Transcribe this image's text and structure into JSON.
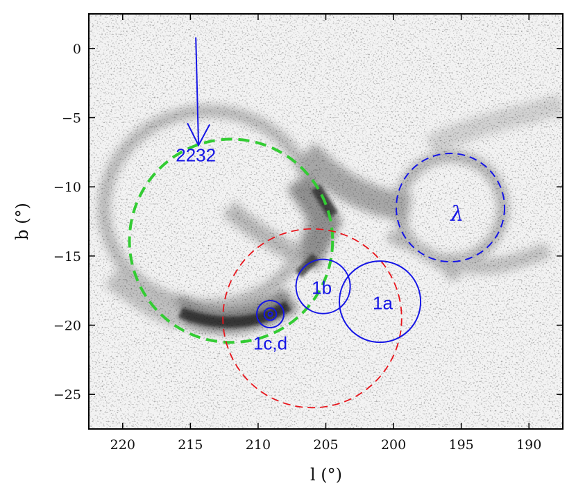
{
  "chart_data": {
    "type": "image",
    "xlabel": "l (°)",
    "ylabel": "b (°)",
    "xlim": [
      222.5,
      187.5
    ],
    "ylim": [
      -27.5,
      2.5
    ],
    "x_reversed": true,
    "xticks": [
      220,
      215,
      210,
      205,
      200,
      195,
      190
    ],
    "yticks": [
      0,
      -5,
      -10,
      -15,
      -20,
      -25
    ],
    "xtick_labels": [
      "220",
      "215",
      "210",
      "205",
      "200",
      "195",
      "190"
    ],
    "ytick_labels": [
      "0",
      "−5",
      "−10",
      "−15",
      "−20",
      "−25"
    ],
    "background": "grayscale intensity map",
    "circles": [
      {
        "name": "green-dashed-shell",
        "l": 212.0,
        "b": -13.9,
        "r": 7.5,
        "style": "dashed",
        "width": 4,
        "color": "#33cc33"
      },
      {
        "name": "red-dashed-shell",
        "l": 206.0,
        "b": -19.5,
        "r": 6.6,
        "style": "dashed",
        "width": 1.8,
        "color": "#e8141b"
      },
      {
        "name": "lambda-shell",
        "l": 195.8,
        "b": -11.5,
        "r": 4.0,
        "style": "dashed",
        "width": 2,
        "color": "#1515e6",
        "label": "λ"
      },
      {
        "name": "region-1a",
        "l": 201.0,
        "b": -18.3,
        "r": 3.0,
        "style": "solid",
        "width": 2,
        "color": "#1515e6",
        "label": "1a"
      },
      {
        "name": "region-1b",
        "l": 205.2,
        "b": -17.2,
        "r": 2.0,
        "style": "solid",
        "width": 2,
        "color": "#1515e6",
        "label": "1b"
      },
      {
        "name": "region-1cd-outer",
        "l": 209.1,
        "b": -19.2,
        "r": 1.0,
        "style": "solid",
        "width": 2,
        "color": "#1515e6",
        "label": "1c,d"
      },
      {
        "name": "region-1cd-inner",
        "l": 209.1,
        "b": -19.2,
        "r": 0.45,
        "style": "solid",
        "width": 2,
        "color": "#1515e6"
      },
      {
        "name": "region-1cd-core",
        "l": 209.1,
        "b": -19.2,
        "r": 0.15,
        "style": "solid",
        "width": 2,
        "color": "#1515e6"
      }
    ],
    "arrow": {
      "label": "2232",
      "from": [
        214.6,
        0.8
      ],
      "to": [
        214.4,
        -7.0
      ],
      "color": "#1515e6"
    },
    "labels": {
      "l1a": {
        "text": "1a",
        "l": 200.8,
        "b": -18.4
      },
      "l1b": {
        "text": "1b",
        "l": 205.3,
        "b": -17.3
      },
      "l1cd": {
        "text": "1c,d",
        "l": 209.1,
        "b": -21.3
      },
      "lambda": {
        "text": "λ",
        "l": 195.3,
        "b": -12.0
      },
      "a2232": {
        "text": "2232",
        "l": 214.6,
        "b": -7.7
      }
    }
  }
}
